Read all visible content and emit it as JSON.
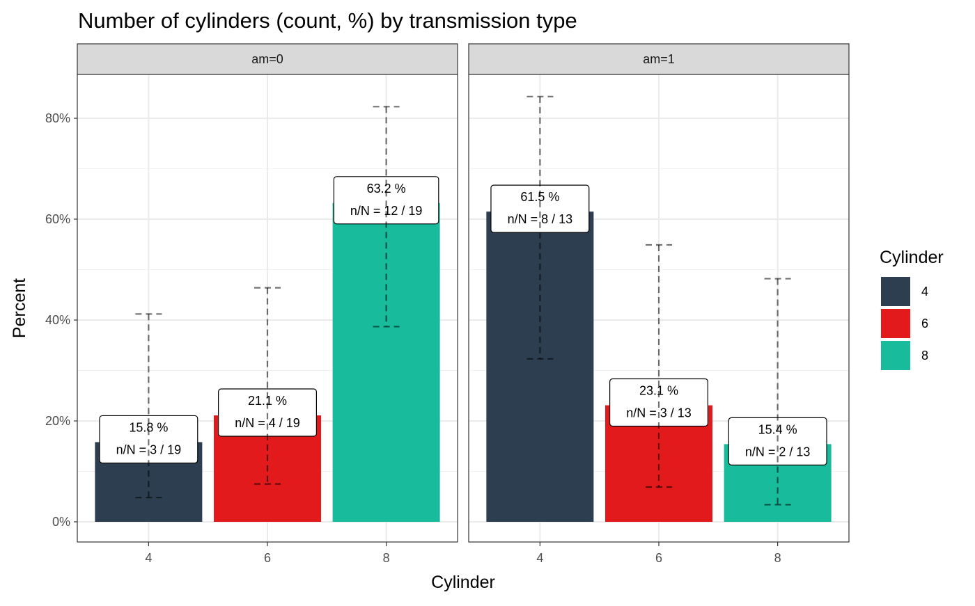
{
  "chart_data": {
    "type": "bar",
    "title": "Number of cylinders (count, %) by transmission type",
    "xlabel": "Cylinder",
    "ylabel": "Percent",
    "ylim": [
      0,
      0.9
    ],
    "y_ticks": [
      0,
      0.2,
      0.4,
      0.6,
      0.8
    ],
    "y_tick_labels": [
      "0%",
      "20%",
      "40%",
      "60%",
      "80%"
    ],
    "categories": [
      "4",
      "6",
      "8"
    ],
    "grid": true,
    "legend": {
      "title": "Cylinder",
      "position": "right",
      "entries": [
        {
          "label": "4",
          "color": "#2c3e50"
        },
        {
          "label": "6",
          "color": "#e31a1c"
        },
        {
          "label": "8",
          "color": "#18bc9c"
        }
      ]
    },
    "facets": [
      {
        "strip_label": "am=0",
        "bars": [
          {
            "category": "4",
            "value": 0.158,
            "ci_low": 0.048,
            "ci_high": 0.412,
            "percent_label": "15.8 %",
            "count_label": "n/N =  3 / 19"
          },
          {
            "category": "6",
            "value": 0.211,
            "ci_low": 0.075,
            "ci_high": 0.464,
            "percent_label": "21.1 %",
            "count_label": "n/N =  4 / 19"
          },
          {
            "category": "8",
            "value": 0.632,
            "ci_low": 0.387,
            "ci_high": 0.823,
            "percent_label": "63.2 %",
            "count_label": "n/N =  12 / 19"
          }
        ]
      },
      {
        "strip_label": "am=1",
        "bars": [
          {
            "category": "4",
            "value": 0.615,
            "ci_low": 0.323,
            "ci_high": 0.843,
            "percent_label": "61.5 %",
            "count_label": "n/N =  8 / 13"
          },
          {
            "category": "6",
            "value": 0.231,
            "ci_low": 0.069,
            "ci_high": 0.549,
            "percent_label": "23.1 %",
            "count_label": "n/N =  3 / 13"
          },
          {
            "category": "8",
            "value": 0.154,
            "ci_low": 0.034,
            "ci_high": 0.482,
            "percent_label": "15.4 %",
            "count_label": "n/N =  2 / 13"
          }
        ]
      }
    ]
  }
}
